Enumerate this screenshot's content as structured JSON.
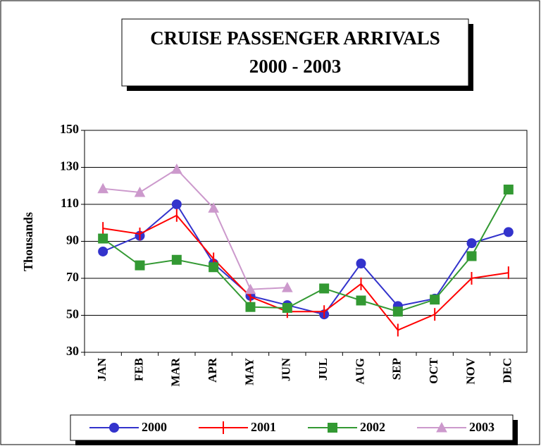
{
  "chart_data": {
    "type": "line",
    "title": "CRUISE PASSENGER ARRIVALS",
    "subtitle": "2000 - 2003",
    "y_label": "Thousands",
    "categories": [
      "JAN",
      "FEB",
      "MAR",
      "APR",
      "MAY",
      "JUN",
      "JUL",
      "AUG",
      "SEP",
      "OCT",
      "NOV",
      "DEC"
    ],
    "series": [
      {
        "name": "2000",
        "color": "#3333cc",
        "marker": "circle",
        "values": [
          84.5,
          93,
          110,
          78,
          60.5,
          55.5,
          50.5,
          78,
          55,
          59,
          89,
          95
        ]
      },
      {
        "name": "2001",
        "color": "#ff0000",
        "marker": "tick",
        "values": [
          97,
          94,
          104,
          80.5,
          60,
          52,
          52,
          67,
          42,
          50.5,
          70,
          73
        ]
      },
      {
        "name": "2002",
        "color": "#339933",
        "marker": "square",
        "values": [
          91.5,
          77,
          80,
          76,
          54.5,
          54,
          64.5,
          58,
          52,
          58.5,
          82,
          118
        ]
      },
      {
        "name": "2003",
        "color": "#cc99cc",
        "marker": "triangle",
        "values": [
          118.5,
          116.5,
          129,
          108,
          64,
          65,
          null,
          null,
          null,
          null,
          null,
          null
        ]
      }
    ],
    "ylim": [
      30,
      150
    ],
    "yticks": [
      30,
      50,
      70,
      90,
      110,
      130,
      150
    ],
    "grid": true,
    "legend": "bottom"
  }
}
